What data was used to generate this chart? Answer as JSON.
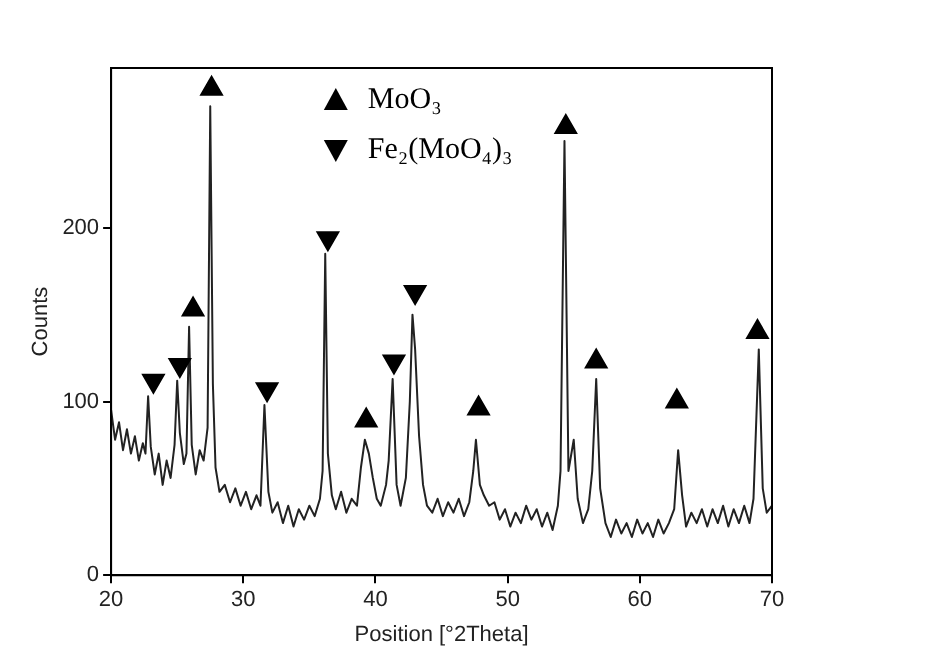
{
  "chart_data": {
    "type": "line",
    "xlabel": "Position [°2Theta]",
    "ylabel": "Counts",
    "xlim": [
      20,
      70
    ],
    "xticks": [
      20,
      30,
      40,
      50,
      60,
      70
    ],
    "ylim": [
      0,
      292
    ],
    "yticks": [
      0,
      100,
      200
    ],
    "grid": false,
    "legend": "top",
    "series": [
      {
        "color": "#222222",
        "marker": "none",
        "line_style": "solid",
        "x": [
          20.0,
          20.3,
          20.6,
          20.9,
          21.2,
          21.5,
          21.8,
          22.1,
          22.4,
          22.6,
          22.8,
          23.0,
          23.3,
          23.6,
          23.9,
          24.2,
          24.5,
          24.8,
          25.0,
          25.2,
          25.5,
          25.7,
          25.9,
          26.1,
          26.4,
          26.7,
          27.0,
          27.3,
          27.5,
          27.7,
          27.9,
          28.2,
          28.6,
          29.0,
          29.4,
          29.8,
          30.2,
          30.6,
          31.0,
          31.3,
          31.6,
          31.9,
          32.2,
          32.6,
          33.0,
          33.4,
          33.8,
          34.2,
          34.6,
          35.0,
          35.4,
          35.8,
          36.0,
          36.2,
          36.4,
          36.7,
          37.0,
          37.4,
          37.8,
          38.2,
          38.6,
          38.9,
          39.2,
          39.5,
          39.8,
          40.1,
          40.4,
          40.8,
          41.0,
          41.3,
          41.6,
          41.9,
          42.3,
          42.6,
          42.8,
          43.0,
          43.3,
          43.6,
          43.9,
          44.3,
          44.7,
          45.1,
          45.5,
          45.9,
          46.3,
          46.7,
          47.1,
          47.4,
          47.6,
          47.9,
          48.2,
          48.6,
          49.0,
          49.4,
          49.8,
          50.2,
          50.6,
          51.0,
          51.4,
          51.8,
          52.2,
          52.6,
          53.0,
          53.4,
          53.8,
          54.0,
          54.3,
          54.6,
          55.0,
          55.3,
          55.7,
          56.1,
          56.4,
          56.7,
          57.0,
          57.4,
          57.8,
          58.2,
          58.6,
          59.0,
          59.4,
          59.8,
          60.2,
          60.6,
          61.0,
          61.4,
          61.8,
          62.2,
          62.6,
          62.9,
          63.2,
          63.5,
          63.9,
          64.3,
          64.7,
          65.1,
          65.5,
          65.9,
          66.3,
          66.7,
          67.1,
          67.5,
          67.9,
          68.3,
          68.6,
          69.0,
          69.3,
          69.6,
          70.0
        ],
        "values": [
          95,
          78,
          88,
          72,
          84,
          70,
          80,
          66,
          76,
          70,
          103,
          74,
          58,
          70,
          52,
          66,
          56,
          75,
          112,
          82,
          64,
          70,
          143,
          75,
          58,
          72,
          66,
          85,
          270,
          110,
          62,
          48,
          52,
          42,
          50,
          40,
          48,
          38,
          46,
          40,
          98,
          48,
          36,
          42,
          30,
          40,
          28,
          38,
          32,
          40,
          34,
          44,
          60,
          185,
          70,
          46,
          38,
          48,
          36,
          44,
          40,
          62,
          78,
          70,
          56,
          44,
          40,
          52,
          66,
          113,
          52,
          40,
          56,
          100,
          150,
          130,
          80,
          52,
          40,
          36,
          44,
          34,
          42,
          36,
          44,
          34,
          42,
          60,
          78,
          52,
          46,
          40,
          42,
          32,
          38,
          28,
          36,
          30,
          40,
          32,
          38,
          28,
          36,
          26,
          40,
          60,
          250,
          60,
          78,
          44,
          30,
          38,
          60,
          113,
          50,
          30,
          22,
          32,
          24,
          30,
          22,
          32,
          24,
          30,
          22,
          32,
          24,
          30,
          38,
          72,
          46,
          28,
          36,
          30,
          38,
          28,
          38,
          30,
          40,
          28,
          38,
          30,
          40,
          30,
          44,
          130,
          50,
          36,
          40
        ]
      },
      {
        "type": "scatter",
        "name": "MoO₃",
        "color": "#000000",
        "marker": "triangle",
        "x": [
          26.2,
          27.6,
          39.3,
          47.8,
          54.4,
          56.7,
          62.8,
          68.9
        ],
        "values": [
          153,
          280,
          89,
          96,
          258,
          123,
          100,
          140
        ]
      },
      {
        "type": "scatter",
        "name": "Fe₂(MoO₄)₃",
        "color": "#000000",
        "marker": "triangle-down",
        "x": [
          23.2,
          25.2,
          31.8,
          36.4,
          41.4,
          43.0
        ],
        "values": [
          112,
          121,
          107,
          194,
          123,
          163
        ]
      }
    ]
  }
}
